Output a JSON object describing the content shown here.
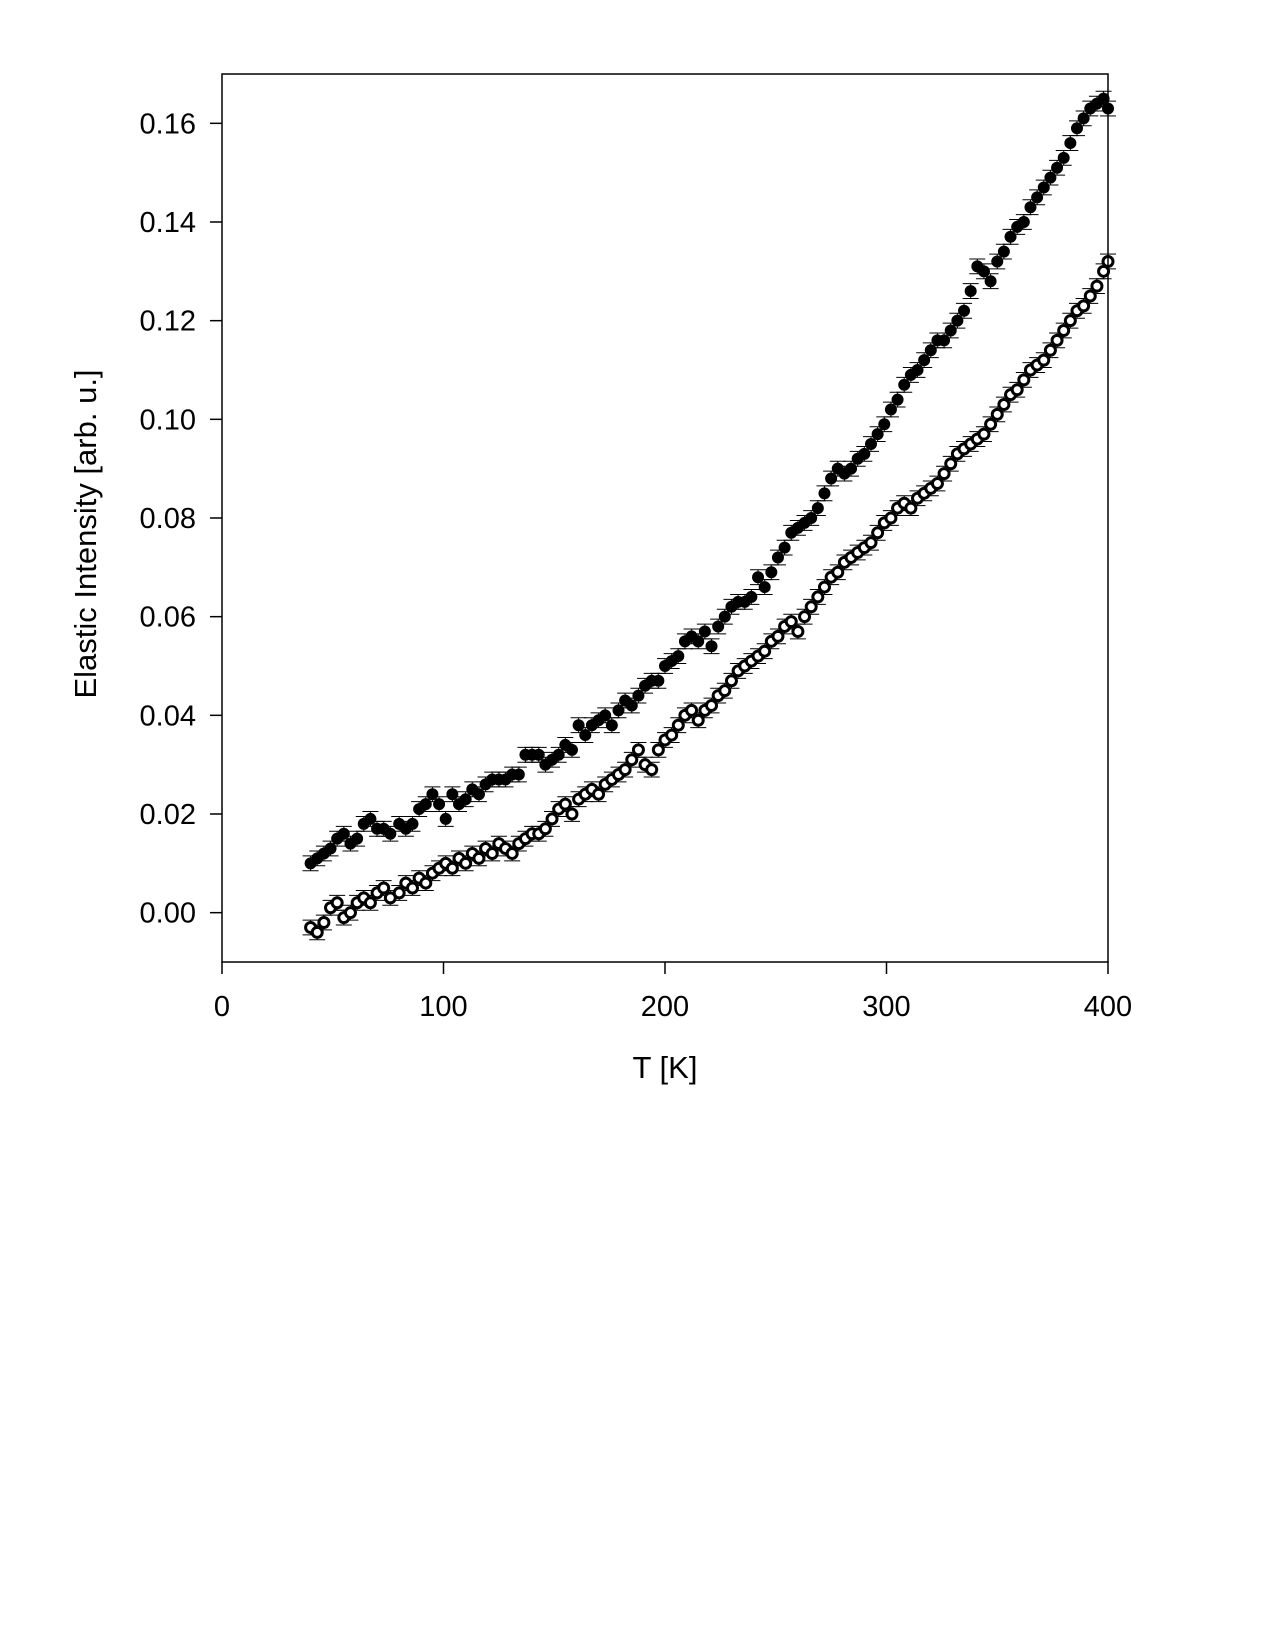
{
  "chart_data": {
    "type": "scatter",
    "title": "",
    "xlabel": "T [K]",
    "ylabel": "Elastic Intensity [arb. u.]",
    "xlim": [
      0,
      400
    ],
    "ylim": [
      -0.01,
      0.17
    ],
    "x_ticks": [
      "0",
      "100",
      "200",
      "300",
      "400"
    ],
    "y_ticks": [
      "0.00",
      "0.02",
      "0.04",
      "0.06",
      "0.08",
      "0.10",
      "0.12",
      "0.14",
      "0.16"
    ],
    "x_tick_values": [
      0,
      100,
      200,
      300,
      400
    ],
    "y_tick_values": [
      0.0,
      0.02,
      0.04,
      0.06,
      0.08,
      0.1,
      0.12,
      0.14,
      0.16
    ],
    "grid": false,
    "legend": "none",
    "error_bars": true,
    "error_bar_halfwidth": 0.0015,
    "series": [
      {
        "marker": "filled-circle",
        "color": "#000000",
        "x": [
          40,
          43,
          46,
          49,
          52,
          55,
          58,
          61,
          64,
          67,
          70,
          73,
          76,
          80,
          83,
          86,
          89,
          92,
          95,
          98,
          101,
          104,
          107,
          110,
          113,
          116,
          119,
          122,
          125,
          128,
          131,
          134,
          137,
          140,
          143,
          146,
          149,
          152,
          155,
          158,
          161,
          164,
          167,
          170,
          173,
          176,
          179,
          182,
          185,
          188,
          191,
          194,
          197,
          200,
          203,
          206,
          209,
          212,
          215,
          218,
          221,
          224,
          227,
          230,
          233,
          236,
          239,
          242,
          245,
          248,
          251,
          254,
          257,
          260,
          263,
          266,
          269,
          272,
          275,
          278,
          281,
          284,
          287,
          290,
          293,
          296,
          299,
          302,
          305,
          308,
          311,
          314,
          317,
          320,
          323,
          326,
          329,
          332,
          335,
          338,
          341,
          344,
          347,
          350,
          353,
          356,
          359,
          362,
          365,
          368,
          371,
          374,
          377,
          380,
          383,
          386,
          389,
          392,
          395,
          398,
          400
        ],
        "y": [
          0.01,
          0.011,
          0.012,
          0.013,
          0.015,
          0.016,
          0.014,
          0.015,
          0.018,
          0.019,
          0.017,
          0.017,
          0.016,
          0.018,
          0.017,
          0.018,
          0.021,
          0.022,
          0.024,
          0.022,
          0.019,
          0.024,
          0.022,
          0.023,
          0.025,
          0.024,
          0.026,
          0.027,
          0.027,
          0.027,
          0.028,
          0.028,
          0.032,
          0.032,
          0.032,
          0.03,
          0.031,
          0.032,
          0.034,
          0.033,
          0.038,
          0.036,
          0.038,
          0.039,
          0.04,
          0.038,
          0.041,
          0.043,
          0.042,
          0.044,
          0.046,
          0.047,
          0.047,
          0.05,
          0.051,
          0.052,
          0.055,
          0.056,
          0.055,
          0.057,
          0.054,
          0.058,
          0.06,
          0.062,
          0.063,
          0.063,
          0.064,
          0.068,
          0.066,
          0.069,
          0.072,
          0.074,
          0.077,
          0.078,
          0.079,
          0.08,
          0.082,
          0.085,
          0.088,
          0.09,
          0.089,
          0.09,
          0.092,
          0.093,
          0.095,
          0.097,
          0.099,
          0.102,
          0.104,
          0.107,
          0.109,
          0.11,
          0.112,
          0.114,
          0.116,
          0.116,
          0.118,
          0.12,
          0.122,
          0.126,
          0.131,
          0.13,
          0.128,
          0.132,
          0.134,
          0.137,
          0.139,
          0.14,
          0.143,
          0.145,
          0.147,
          0.149,
          0.151,
          0.153,
          0.156,
          0.159,
          0.161,
          0.163,
          0.164,
          0.165,
          0.163
        ]
      },
      {
        "marker": "open-circle",
        "color": "#000000",
        "x": [
          40,
          43,
          46,
          49,
          52,
          55,
          58,
          61,
          64,
          67,
          70,
          73,
          76,
          80,
          83,
          86,
          89,
          92,
          95,
          98,
          101,
          104,
          107,
          110,
          113,
          116,
          119,
          122,
          125,
          128,
          131,
          134,
          137,
          140,
          143,
          146,
          149,
          152,
          155,
          158,
          161,
          164,
          167,
          170,
          173,
          176,
          179,
          182,
          185,
          188,
          191,
          194,
          197,
          200,
          203,
          206,
          209,
          212,
          215,
          218,
          221,
          224,
          227,
          230,
          233,
          236,
          239,
          242,
          245,
          248,
          251,
          254,
          257,
          260,
          263,
          266,
          269,
          272,
          275,
          278,
          281,
          284,
          287,
          290,
          293,
          296,
          299,
          302,
          305,
          308,
          311,
          314,
          317,
          320,
          323,
          326,
          329,
          332,
          335,
          338,
          341,
          344,
          347,
          350,
          353,
          356,
          359,
          362,
          365,
          368,
          371,
          374,
          377,
          380,
          383,
          386,
          389,
          392,
          395,
          398,
          400
        ],
        "y": [
          -0.003,
          -0.004,
          -0.002,
          0.001,
          0.002,
          -0.001,
          0.0,
          0.002,
          0.003,
          0.002,
          0.004,
          0.005,
          0.003,
          0.004,
          0.006,
          0.005,
          0.007,
          0.006,
          0.008,
          0.009,
          0.01,
          0.009,
          0.011,
          0.01,
          0.012,
          0.011,
          0.013,
          0.012,
          0.014,
          0.013,
          0.012,
          0.014,
          0.015,
          0.016,
          0.016,
          0.017,
          0.019,
          0.021,
          0.022,
          0.02,
          0.023,
          0.024,
          0.025,
          0.024,
          0.026,
          0.027,
          0.028,
          0.029,
          0.031,
          0.033,
          0.03,
          0.029,
          0.033,
          0.035,
          0.036,
          0.038,
          0.04,
          0.041,
          0.039,
          0.041,
          0.042,
          0.044,
          0.045,
          0.047,
          0.049,
          0.05,
          0.051,
          0.052,
          0.053,
          0.055,
          0.056,
          0.058,
          0.059,
          0.057,
          0.06,
          0.062,
          0.064,
          0.066,
          0.068,
          0.069,
          0.071,
          0.072,
          0.073,
          0.074,
          0.075,
          0.077,
          0.079,
          0.08,
          0.082,
          0.083,
          0.082,
          0.084,
          0.085,
          0.086,
          0.087,
          0.089,
          0.091,
          0.093,
          0.094,
          0.095,
          0.096,
          0.097,
          0.099,
          0.101,
          0.103,
          0.105,
          0.106,
          0.108,
          0.11,
          0.111,
          0.112,
          0.114,
          0.116,
          0.118,
          0.12,
          0.122,
          0.123,
          0.125,
          0.127,
          0.13,
          0.132
        ]
      }
    ]
  }
}
